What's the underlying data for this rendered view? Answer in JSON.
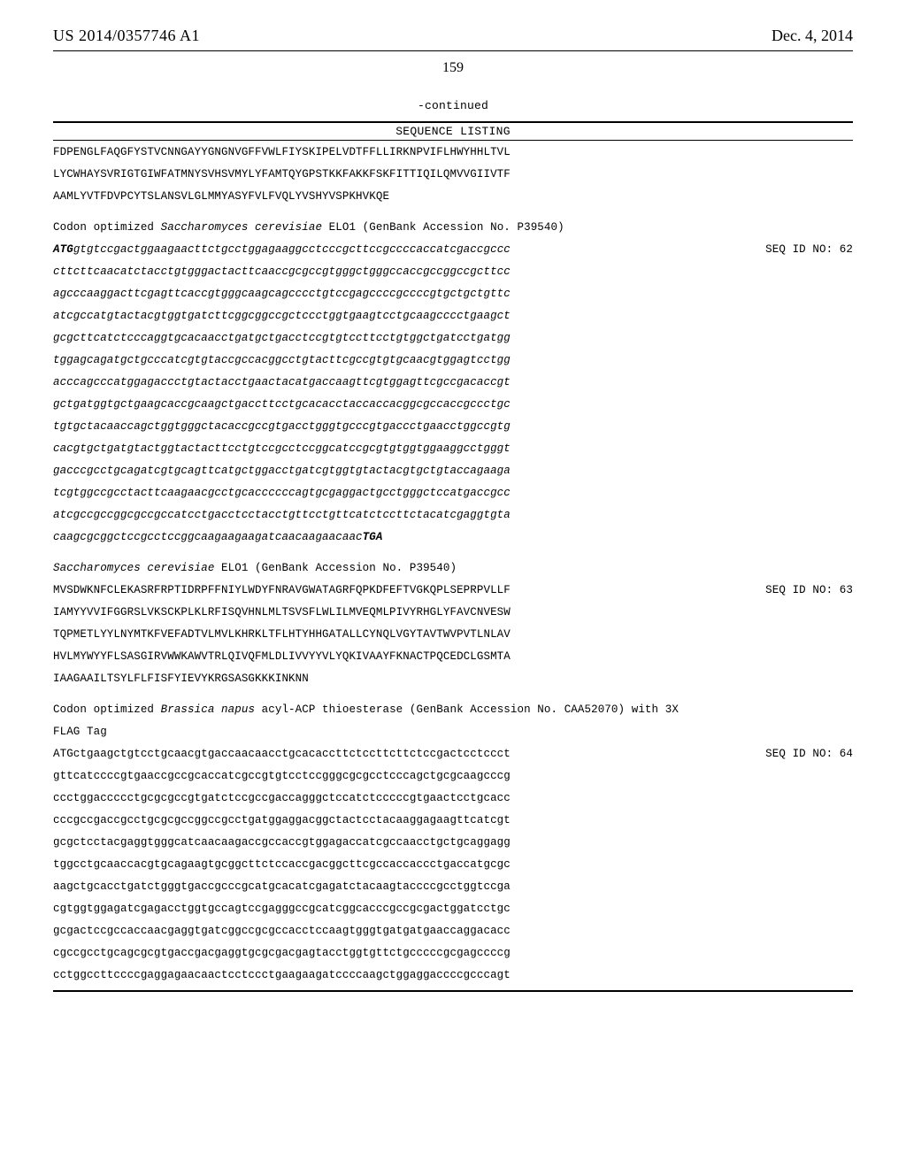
{
  "header": {
    "publication_number": "US 2014/0357746 A1",
    "publication_date": "Dec. 4, 2014",
    "page_number": "159"
  },
  "continued_label": "-continued",
  "seq_listing_heading": "SEQUENCE LISTING",
  "blocks": [
    {
      "lines": [
        {
          "text": "FDPENGLFAQGFYSTVCNNGAYYGNGNVGFFVWLFIYSKIPELVDTFFLLIRKNPVIFLHWYHHLTVL",
          "style": "plain"
        },
        {
          "text": "LYCWHAYSVRIGTGIWFATMNYSVHSVMYLYFAMTQYGPSTKKFAKKFSKFITTIQILQMVVGIIVTF",
          "style": "plain"
        },
        {
          "text": "AAMLYVTFDVPCYTSLANSVLGLMMYASYFVLFVQLYVSHYVSPKHVKQE",
          "style": "plain"
        }
      ]
    },
    {
      "desc": "Codon optimized Saccharomyces cerevisiae ELO1 (GenBank Accession No. P39540)",
      "gene": "Saccharomyces cerevisiae",
      "seq_id": "SEQ ID NO: 62",
      "seq_id_line_index": 0,
      "lines": [
        {
          "prefix_bold_italic": "ATG",
          "text": "gtgtccgactggaagaacttctgcctggagaaggcctcccgcttccgccccaccatcgaccgccc",
          "style": "dna"
        },
        {
          "text": "cttcttcaacatctacctgtgggactacttcaaccgcgccgtgggctgggccaccgccggccgcttcc",
          "style": "dna"
        },
        {
          "text": "agcccaaggacttcgagttcaccgtgggcaagcagcccctgtccgagccccgccccgtgctgctgttc",
          "style": "dna"
        },
        {
          "text": "atcgccatgtactacgtggtgatcttcggcggccgctccctggtgaagtcctgcaagcccctgaagct",
          "style": "dna"
        },
        {
          "text": "gcgcttcatctcccaggtgcacaacctgatgctgacctccgtgtccttcctgtggctgatcctgatgg",
          "style": "dna"
        },
        {
          "text": "tggagcagatgctgcccatcgtgtaccgccacggcctgtacttcgccgtgtgcaacgtggagtcctgg",
          "style": "dna"
        },
        {
          "text": "acccagcccatggagaccctgtactacctgaactacatgaccaagttcgtggagttcgccgacaccgt",
          "style": "dna"
        },
        {
          "text": "gctgatggtgctgaagcaccgcaagctgaccttcctgcacacctaccaccacggcgccaccgccctgc",
          "style": "dna"
        },
        {
          "text": "tgtgctacaaccagctggtgggctacaccgccgtgacctgggtgcccgtgaccctgaacctggccgtg",
          "style": "dna"
        },
        {
          "text": "cacgtgctgatgtactggtactacttcctgtccgcctccggcatccgcgtgtggtggaaggcctgggt",
          "style": "dna"
        },
        {
          "text": "gacccgcctgcagatcgtgcagttcatgctggacctgatcgtggtgtactacgtgctgtaccagaaga",
          "style": "dna"
        },
        {
          "text": "tcgtggccgcctacttcaagaacgcctgcaccccccagtgcgaggactgcctgggctccatgaccgcc",
          "style": "dna"
        },
        {
          "text": "atcgccgccggcgccgccatcctgacctcctacctgttcctgttcatctccttctacatcgaggtgta",
          "style": "dna"
        },
        {
          "text": "caagcgcggctccgcctccggcaagaagaagatcaacaagaacaac",
          "suffix_bold_italic": "TGA",
          "style": "dna"
        }
      ]
    },
    {
      "desc": "Saccharomyces cerevisiae ELO1 (GenBank Accession No. P39540)",
      "gene": "Saccharomyces cerevisiae",
      "seq_id": "SEQ ID NO: 63",
      "seq_id_line_index": 0,
      "lines": [
        {
          "text": "MVSDWKNFCLEKASRFRPTIDRPFFNIYLWDYFNRAVGWATAGRFQPKDFEFTVGKQPLSEPRPVLLF",
          "style": "plain"
        },
        {
          "text": "IAMYYVVIFGGRSLVKSCKPLKLRFISQVHNLMLTSVSFLWLILMVEQMLPIVYRHGLYFAVCNVESW",
          "style": "plain"
        },
        {
          "text": "TQPMETLYYLNYMTKFVEFADTVLMVLKHRKLTFLHTYHHGATALLCYNQLVGYTAVTWVPVTLNLAV",
          "style": "plain"
        },
        {
          "text": "HVLMYWYYFLSASGIRVWWKAWVTRLQIVQFMLDLIVVYYVLYQKIVAAYFKNACTPQCEDCLGSMTA",
          "style": "plain"
        },
        {
          "text": "IAAGAAILTSYLFLFISFYIEVYKRGSASGKKKINKNN",
          "style": "plain"
        }
      ]
    },
    {
      "desc": "Codon optimized Brassica napus acyl-ACP thioesterase (GenBank Accession No. CAA52070) with 3X FLAG Tag",
      "gene": "Brassica napus",
      "seq_id": "SEQ ID NO: 64",
      "seq_id_line_index": 0,
      "lines": [
        {
          "text": "ATGctgaagctgtcctgcaacgtgaccaacaacctgcacaccttctccttcttctccgactcctccct",
          "style": "plain"
        },
        {
          "text": "gttcatccccgtgaaccgccgcaccatcgccgtgtcctccgggcgcgcctcccagctgcgcaagcccg",
          "style": "plain"
        },
        {
          "text": "ccctggaccccctgcgcgccgtgatctccgccgaccagggctccatctcccccgtgaactcctgcacc",
          "style": "plain"
        },
        {
          "text": "cccgccgaccgcctgcgcgccggccgcctgatggaggacggctactcctacaaggagaagttcatcgt",
          "style": "plain"
        },
        {
          "text": "gcgctcctacgaggtgggcatcaacaagaccgccaccgtggagaccatcgccaacctgctgcaggagg",
          "style": "plain"
        },
        {
          "text": "tggcctgcaaccacgtgcagaagtgcggcttctccaccgacggcttcgccaccaccctgaccatgcgc",
          "style": "plain"
        },
        {
          "text": "aagctgcacctgatctgggtgaccgcccgcatgcacatcgagatctacaagtaccccgcctggtccga",
          "style": "plain"
        },
        {
          "text": "cgtggtggagatcgagacctggtgccagtccgagggccgcatcggcacccgccgcgactggatcctgc",
          "style": "plain"
        },
        {
          "text": "gcgactccgccaccaacgaggtgatcggccgcgccacctccaagtgggtgatgatgaaccaggacacc",
          "style": "plain"
        },
        {
          "text": "cgccgcctgcagcgcgtgaccgacgaggtgcgcgacgagtacctggtgttctgcccccgcgagccccg",
          "style": "plain"
        },
        {
          "text": "cctggccttccccgaggagaacaactcctccctgaagaagatccccaagctggaggaccccgcccagt",
          "style": "plain"
        }
      ]
    }
  ]
}
